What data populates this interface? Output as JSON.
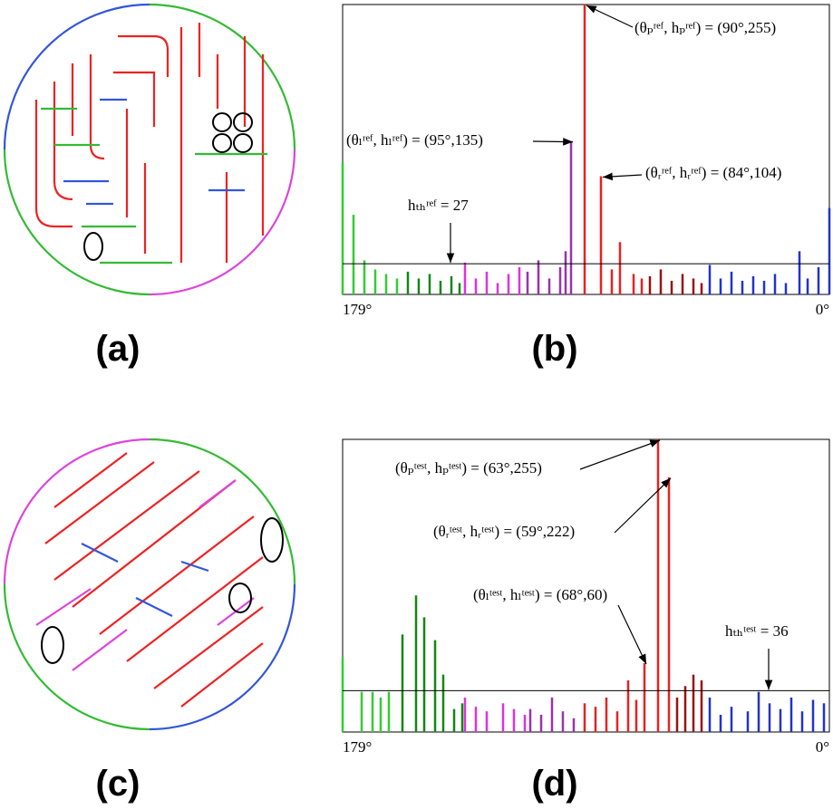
{
  "panel_labels": [
    "(a)",
    "(b)",
    "(c)",
    "(d)"
  ],
  "chart_data": [
    {
      "type": "bar",
      "xlim": [
        179,
        0
      ],
      "ylim": [
        0,
        255
      ],
      "xticks": [
        {
          "value": 179,
          "label": "179°"
        },
        {
          "value": 0,
          "label": "0°"
        }
      ],
      "series": [
        {
          "color": "#33cc33",
          "x": [
            179,
            175,
            171,
            167,
            163,
            159
          ],
          "values": [
            116,
            70,
            30,
            22,
            18,
            14
          ]
        },
        {
          "color": "#118811",
          "x": [
            155,
            151,
            147,
            143,
            139,
            136
          ],
          "values": [
            20,
            14,
            18,
            12,
            16,
            10
          ]
        },
        {
          "color": "#dd33dd",
          "x": [
            134,
            130,
            126,
            122,
            118,
            114
          ],
          "values": [
            28,
            14,
            20,
            10,
            18,
            24
          ]
        },
        {
          "color": "#9933aa",
          "x": [
            111,
            107,
            103,
            99,
            97,
            95
          ],
          "values": [
            20,
            30,
            14,
            24,
            38,
            135
          ]
        },
        {
          "color": "#e62222",
          "x": [
            90,
            84,
            80,
            77,
            72,
            69
          ],
          "values": [
            255,
            104,
            22,
            46,
            18,
            14
          ]
        },
        {
          "color": "#991111",
          "x": [
            66,
            62,
            58,
            54,
            50,
            47
          ],
          "values": [
            16,
            22,
            12,
            18,
            14,
            10
          ]
        },
        {
          "color": "#2233cc",
          "x": [
            44,
            40,
            36,
            32,
            28,
            24,
            20,
            16,
            11,
            8,
            4,
            0
          ],
          "values": [
            26,
            14,
            20,
            12,
            16,
            12,
            18,
            10,
            38,
            14,
            24,
            76
          ]
        }
      ],
      "annotations": [
        {
          "text": "(θₚʳᵉᶠ, hₚʳᵉᶠ) = (90°,255)",
          "x": 90,
          "y": 255
        },
        {
          "text": "(θₗʳᵉᶠ, hₗʳᵉᶠ) = (95°,135)",
          "x": 95,
          "y": 135
        },
        {
          "text": "(θᵣʳᵉᶠ, hᵣʳᵉᶠ) = (84°,104)",
          "x": 84,
          "y": 104
        }
      ],
      "threshold": 27,
      "threshold_label": "hₜₕʳᵉᶠ = 27"
    },
    {
      "type": "bar",
      "xlim": [
        179,
        0
      ],
      "ylim": [
        0,
        255
      ],
      "xticks": [
        {
          "value": 179,
          "label": "179°"
        },
        {
          "value": 0,
          "label": "0°"
        }
      ],
      "series": [
        {
          "color": "#33cc33",
          "x": [
            179,
            172,
            168,
            165,
            162
          ],
          "values": [
            65,
            35,
            35,
            30,
            35
          ]
        },
        {
          "color": "#118811",
          "x": [
            157,
            152,
            149,
            145,
            142,
            138,
            135
          ],
          "values": [
            85,
            119,
            100,
            80,
            50,
            20,
            25
          ]
        },
        {
          "color": "#dd33dd",
          "x": [
            134,
            130,
            126,
            120,
            116,
            112
          ],
          "values": [
            30,
            22,
            18,
            25,
            20,
            15
          ]
        },
        {
          "color": "#9933aa",
          "x": [
            110,
            106,
            102,
            98,
            94
          ],
          "values": [
            20,
            15,
            30,
            18,
            12
          ]
        },
        {
          "color": "#e62222",
          "x": [
            90,
            86,
            82,
            78,
            74,
            71,
            68,
            63,
            59
          ],
          "values": [
            25,
            22,
            30,
            18,
            45,
            28,
            60,
            255,
            222
          ]
        },
        {
          "color": "#991111",
          "x": [
            56,
            53,
            50,
            47
          ],
          "values": [
            30,
            40,
            50,
            45
          ]
        },
        {
          "color": "#2233cc",
          "x": [
            44,
            40,
            36,
            30,
            26,
            22,
            18,
            14,
            10,
            6,
            2
          ],
          "values": [
            30,
            15,
            22,
            18,
            35,
            25,
            20,
            30,
            18,
            28,
            25
          ]
        }
      ],
      "annotations": [
        {
          "text": "(θₚᵗᵉˢᵗ, hₚᵗᵉˢᵗ) = (63°,255)",
          "x": 63,
          "y": 255
        },
        {
          "text": "(θᵣᵗᵉˢᵗ, hᵣᵗᵉˢᵗ) = (59°,222)",
          "x": 59,
          "y": 222
        },
        {
          "text": "(θₗᵗᵉˢᵗ, hₗᵗᵉˢᵗ) = (68°,60)",
          "x": 68,
          "y": 60
        }
      ],
      "threshold": 36,
      "threshold_label": "hₜₕᵗᵉˢᵗ = 36"
    }
  ]
}
